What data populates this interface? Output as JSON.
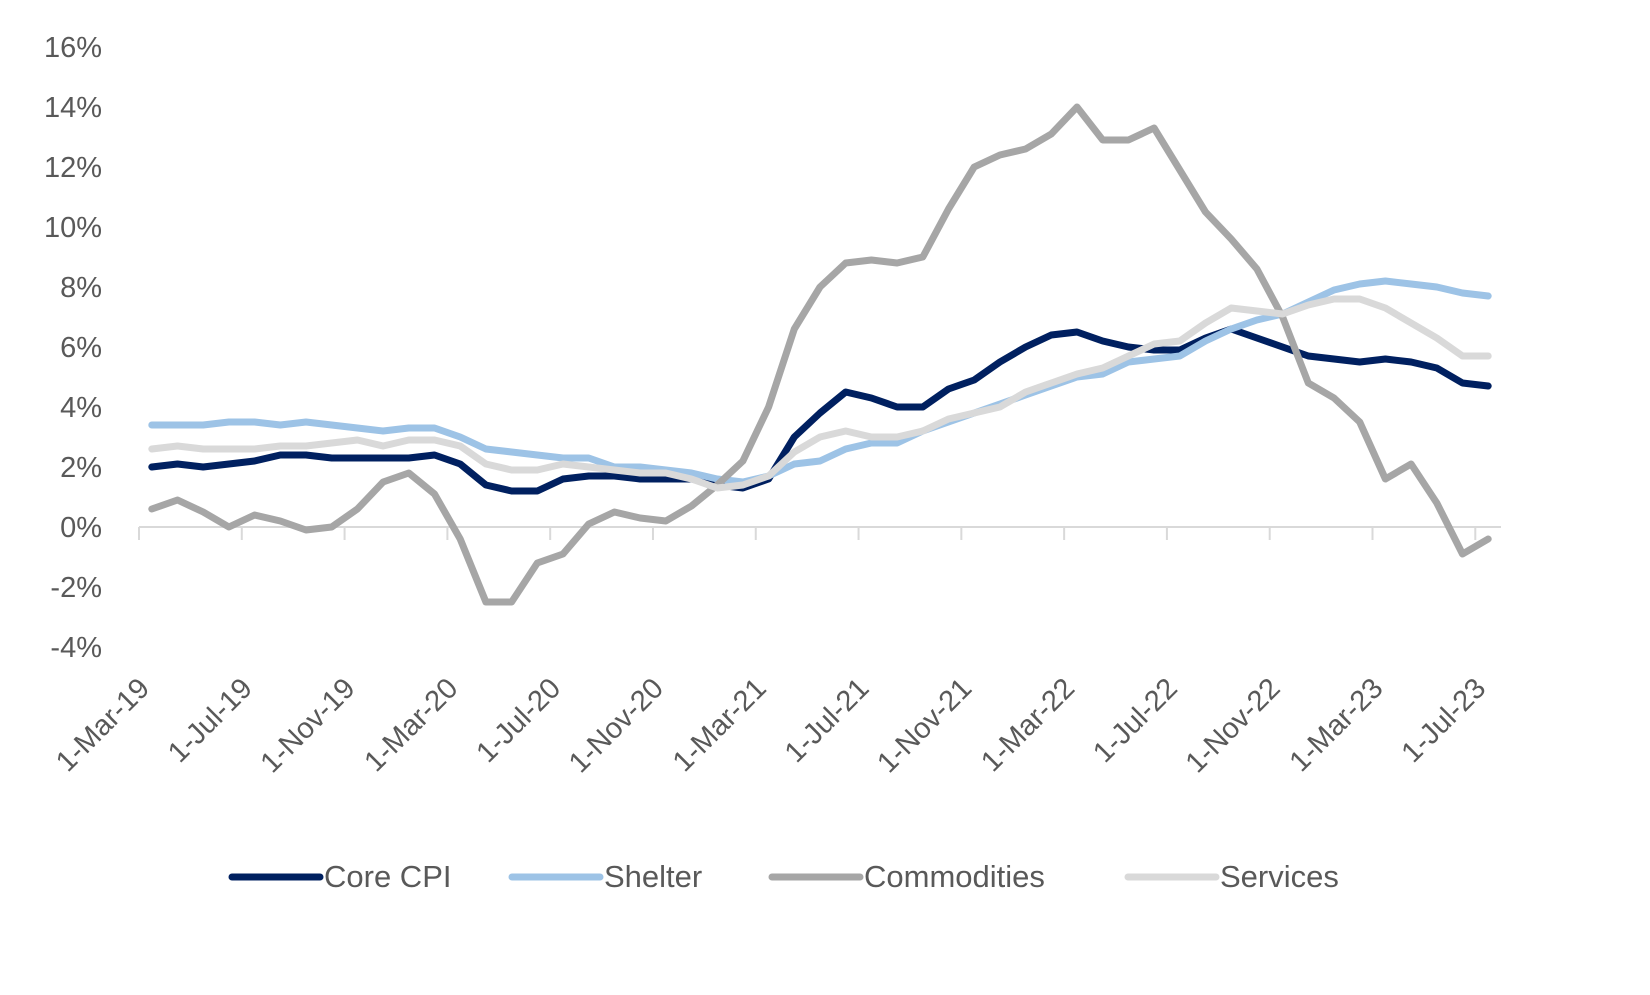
{
  "chart_data": {
    "type": "line",
    "title": "",
    "xlabel": "",
    "ylabel": "",
    "ylim": [
      -4,
      16
    ],
    "ytick_step": 2,
    "ytick_format": "percent",
    "grid": false,
    "legend_position": "bottom",
    "x_start": "1-Mar-19",
    "x_end": "1-Jul-23",
    "x_frequency": "monthly",
    "xtick_labels": [
      "1-Mar-19",
      "1-Jul-19",
      "1-Nov-19",
      "1-Mar-20",
      "1-Jul-20",
      "1-Nov-20",
      "1-Mar-21",
      "1-Jul-21",
      "1-Nov-21",
      "1-Mar-22",
      "1-Jul-22",
      "1-Nov-22",
      "1-Mar-23",
      "1-Jul-23"
    ],
    "ytick_labels": [
      "-4%",
      "-2%",
      "0%",
      "2%",
      "4%",
      "6%",
      "8%",
      "10%",
      "12%",
      "14%",
      "16%"
    ],
    "series": [
      {
        "name": "Core CPI",
        "color": "#002060",
        "values": [
          2.0,
          2.1,
          2.0,
          2.1,
          2.2,
          2.4,
          2.4,
          2.3,
          2.3,
          2.3,
          2.3,
          2.4,
          2.1,
          1.4,
          1.2,
          1.2,
          1.6,
          1.7,
          1.7,
          1.6,
          1.6,
          1.6,
          1.4,
          1.3,
          1.6,
          3.0,
          3.8,
          4.5,
          4.3,
          4.0,
          4.0,
          4.6,
          4.9,
          5.5,
          6.0,
          6.4,
          6.5,
          6.2,
          6.0,
          5.9,
          5.9,
          6.3,
          6.6,
          6.3,
          6.0,
          5.7,
          5.6,
          5.5,
          5.6,
          5.5,
          5.3,
          4.8,
          4.7
        ]
      },
      {
        "name": "Shelter",
        "color": "#9DC3E6",
        "values": [
          3.4,
          3.4,
          3.4,
          3.5,
          3.5,
          3.4,
          3.5,
          3.4,
          3.3,
          3.2,
          3.3,
          3.3,
          3.0,
          2.6,
          2.5,
          2.4,
          2.3,
          2.3,
          2.0,
          2.0,
          1.9,
          1.8,
          1.6,
          1.5,
          1.7,
          2.1,
          2.2,
          2.6,
          2.8,
          2.8,
          3.2,
          3.5,
          3.8,
          4.1,
          4.4,
          4.7,
          5.0,
          5.1,
          5.5,
          5.6,
          5.7,
          6.2,
          6.6,
          6.9,
          7.1,
          7.5,
          7.9,
          8.1,
          8.2,
          8.1,
          8.0,
          7.8,
          7.7
        ]
      },
      {
        "name": "Commodities",
        "color": "#A6A6A6",
        "values": [
          0.6,
          0.9,
          0.5,
          0.0,
          0.4,
          0.2,
          -0.1,
          0.0,
          0.6,
          1.5,
          1.8,
          1.1,
          -0.4,
          -2.5,
          -2.5,
          -1.2,
          -0.9,
          0.1,
          0.5,
          0.3,
          0.2,
          0.7,
          1.4,
          2.2,
          4.0,
          6.6,
          8.0,
          8.8,
          8.9,
          8.8,
          9.0,
          10.6,
          12.0,
          12.4,
          12.6,
          13.1,
          14.0,
          12.9,
          12.9,
          13.3,
          11.9,
          10.5,
          9.6,
          8.6,
          7.0,
          4.8,
          4.3,
          3.5,
          1.6,
          2.1,
          0.8,
          -0.9,
          -0.4
        ]
      },
      {
        "name": "Services",
        "color": "#D9D9D9",
        "values": [
          2.6,
          2.7,
          2.6,
          2.6,
          2.6,
          2.7,
          2.7,
          2.8,
          2.9,
          2.7,
          2.9,
          2.9,
          2.7,
          2.1,
          1.9,
          1.9,
          2.1,
          2.0,
          1.9,
          1.8,
          1.8,
          1.6,
          1.3,
          1.4,
          1.7,
          2.5,
          3.0,
          3.2,
          3.0,
          3.0,
          3.2,
          3.6,
          3.8,
          4.0,
          4.5,
          4.8,
          5.1,
          5.3,
          5.7,
          6.1,
          6.2,
          6.8,
          7.3,
          7.2,
          7.1,
          7.4,
          7.6,
          7.6,
          7.3,
          6.8,
          6.3,
          5.7,
          5.7
        ]
      }
    ]
  }
}
